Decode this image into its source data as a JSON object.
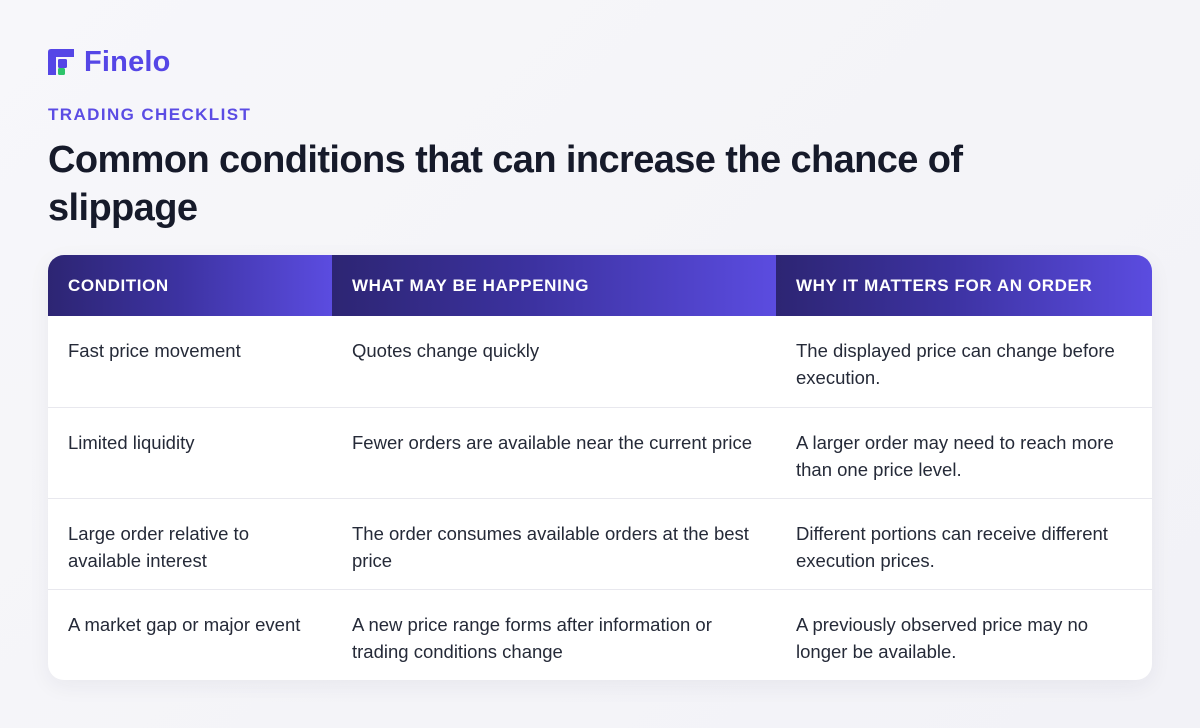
{
  "brand": {
    "name": "Finelo",
    "logo_icon": "finelo-logo-icon",
    "accent_color": "#5546e6",
    "accent_square_color": "#2ec46a"
  },
  "eyebrow": "TRADING CHECKLIST",
  "title": "Common conditions that can increase the chance of slippage",
  "table": {
    "headers": [
      "CONDITION",
      "WHAT MAY BE HAPPENING",
      "WHY IT MATTERS FOR AN ORDER"
    ],
    "rows": [
      [
        "Fast price movement",
        "Quotes change quickly",
        "The displayed price can change before execution."
      ],
      [
        "Limited liquidity",
        "Fewer orders are available near the current price",
        "A larger order may need to reach more than one price level."
      ],
      [
        "Large order relative to available interest",
        "The order consumes available orders at the best price",
        "Different portions can receive different execution prices."
      ],
      [
        "A market gap or major event",
        "A new price range forms after information or trading conditions change",
        "A previously observed price may no longer be available."
      ]
    ]
  }
}
